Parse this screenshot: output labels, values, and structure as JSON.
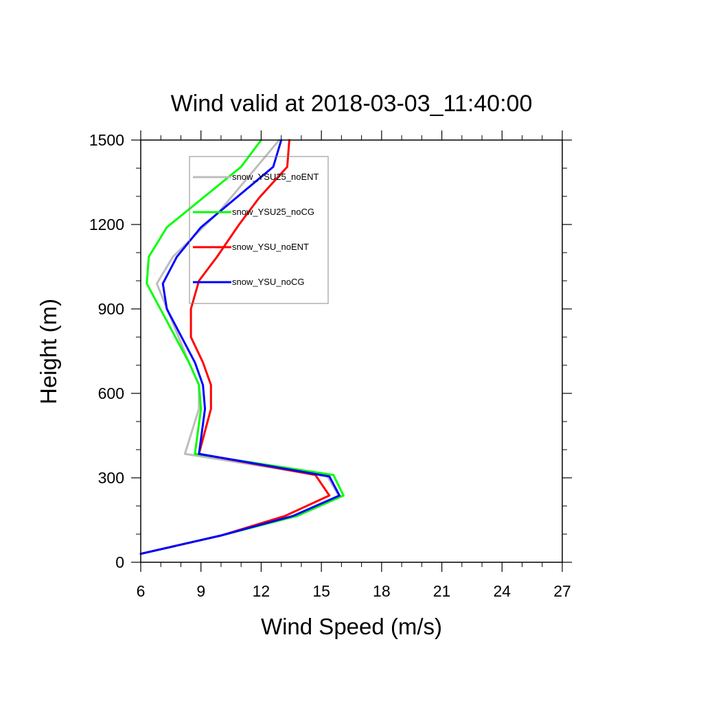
{
  "chart_data": {
    "type": "line",
    "title": "Wind valid at 2018-03-03_11:40:00",
    "xlabel": "Wind Speed (m/s)",
    "ylabel": "Height (m)",
    "xlim": [
      6,
      27
    ],
    "ylim": [
      0,
      1500
    ],
    "xticks": [
      6,
      9,
      12,
      15,
      18,
      21,
      24,
      27
    ],
    "yticks": [
      0,
      300,
      600,
      900,
      1200,
      1500
    ],
    "x_minor_step": 1,
    "y_minor_step": 100,
    "grid": false,
    "legend_position": "top-left inside plot",
    "series": [
      {
        "name": "snow_YSU25_noENT",
        "color": "#bdbdbd",
        "points": [
          [
            6.0,
            30
          ],
          [
            10.0,
            95
          ],
          [
            13.6,
            165
          ],
          [
            15.9,
            232
          ],
          [
            15.3,
            305
          ],
          [
            8.2,
            385
          ],
          [
            8.9,
            545
          ],
          [
            8.9,
            630
          ],
          [
            8.4,
            710
          ],
          [
            6.8,
            990
          ],
          [
            7.6,
            1085
          ],
          [
            9.9,
            1245
          ],
          [
            12.9,
            1500
          ]
        ]
      },
      {
        "name": "snow_YSU25_noCG",
        "color": "#00ff00",
        "points": [
          [
            6.0,
            30
          ],
          [
            10.0,
            95
          ],
          [
            13.8,
            165
          ],
          [
            16.1,
            237
          ],
          [
            15.6,
            310
          ],
          [
            8.7,
            385
          ],
          [
            9.0,
            545
          ],
          [
            8.9,
            630
          ],
          [
            8.4,
            710
          ],
          [
            6.3,
            990
          ],
          [
            6.4,
            1085
          ],
          [
            7.3,
            1190
          ],
          [
            11.0,
            1405
          ],
          [
            12.0,
            1500
          ]
        ]
      },
      {
        "name": "snow_YSU_noENT",
        "color": "#ff0000",
        "points": [
          [
            6.0,
            30
          ],
          [
            10.0,
            95
          ],
          [
            13.2,
            165
          ],
          [
            15.4,
            237
          ],
          [
            14.7,
            310
          ],
          [
            8.9,
            385
          ],
          [
            9.5,
            545
          ],
          [
            9.5,
            630
          ],
          [
            9.1,
            710
          ],
          [
            8.5,
            800
          ],
          [
            8.5,
            900
          ],
          [
            8.9,
            1000
          ],
          [
            9.8,
            1085
          ],
          [
            10.9,
            1200
          ],
          [
            11.9,
            1295
          ],
          [
            13.3,
            1405
          ],
          [
            13.4,
            1500
          ]
        ]
      },
      {
        "name": "snow_YSU_noCG",
        "color": "#0000ff",
        "points": [
          [
            6.0,
            30
          ],
          [
            10.0,
            95
          ],
          [
            13.6,
            165
          ],
          [
            15.9,
            237
          ],
          [
            15.4,
            305
          ],
          [
            8.9,
            385
          ],
          [
            9.2,
            545
          ],
          [
            9.1,
            630
          ],
          [
            8.7,
            710
          ],
          [
            7.3,
            900
          ],
          [
            7.1,
            990
          ],
          [
            7.8,
            1085
          ],
          [
            9.0,
            1190
          ],
          [
            12.6,
            1405
          ],
          [
            13.0,
            1500
          ]
        ]
      }
    ]
  }
}
